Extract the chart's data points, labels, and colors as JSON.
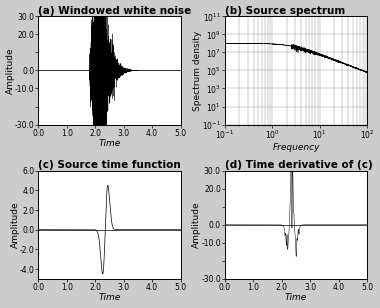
{
  "title_a": "(a) Windowed white noise",
  "title_b": "(b) Source spectrum",
  "title_c": "(c) Source time function",
  "title_d": "(d) Time derivative of (c)",
  "ylabel_a": "Amplitude",
  "ylabel_b": "Spectrum density",
  "ylabel_c": "Amplitude",
  "ylabel_d": "Amplitude",
  "xlabel_a": "Time",
  "xlabel_b": "Frequency",
  "xlabel_c": "Time",
  "xlabel_d": "Time",
  "ylim_a": [
    -30.0,
    30.0
  ],
  "ylim_b_log": [
    -1,
    11
  ],
  "ylim_c": [
    -5.0,
    6.0
  ],
  "ylim_d": [
    -30.0,
    30.0
  ],
  "xlim_a": [
    0.0,
    5.0
  ],
  "xlim_b": [
    -1,
    2
  ],
  "xlim_c": [
    0.0,
    5.0
  ],
  "xlim_d": [
    0.0,
    5.0
  ],
  "background": "#f0f0f0",
  "line_color": "#000000",
  "title_fontsize": 7.5,
  "label_fontsize": 6.5,
  "tick_fontsize": 5.5
}
